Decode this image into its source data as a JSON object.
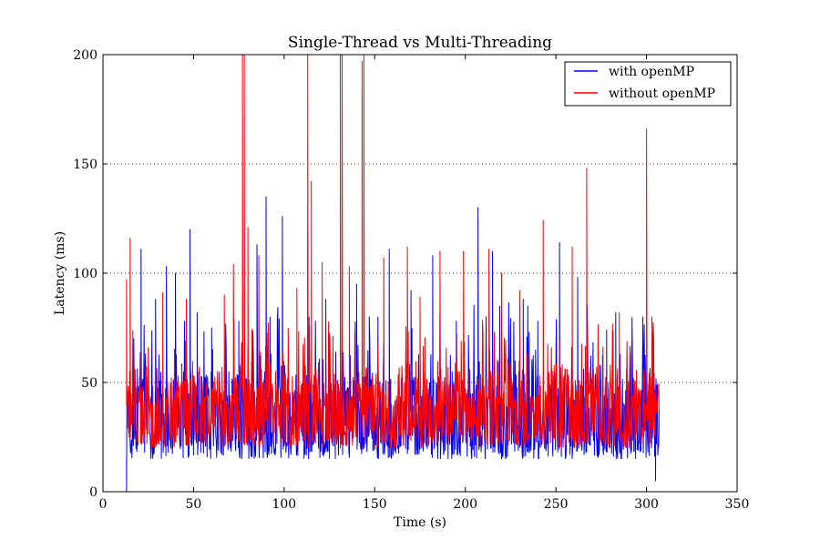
{
  "chart_data": {
    "type": "line",
    "title": "Single-Thread vs Multi-Threading",
    "xlabel": "Time (s)",
    "ylabel": "Latency (ms)",
    "xlim": [
      0,
      350
    ],
    "ylim": [
      0,
      200
    ],
    "xticks": [
      0,
      50,
      100,
      150,
      200,
      250,
      300,
      350
    ],
    "yticks": [
      0,
      50,
      100,
      150,
      200
    ],
    "grid": "y-dotted",
    "legend_position": "top-right",
    "series": [
      {
        "name": "with openMP",
        "color": "#0000ff",
        "x_range": [
          13,
          307
        ],
        "baseline": 35,
        "band": [
          15,
          70
        ],
        "spikes": [
          [
            13,
            0
          ],
          [
            17,
            70
          ],
          [
            21,
            111
          ],
          [
            29,
            88
          ],
          [
            35,
            103
          ],
          [
            40,
            100
          ],
          [
            48,
            120
          ],
          [
            52,
            82
          ],
          [
            60,
            75
          ],
          [
            75,
            78
          ],
          [
            85,
            113
          ],
          [
            90,
            135
          ],
          [
            99,
            126
          ],
          [
            113,
            118
          ],
          [
            123,
            88
          ],
          [
            131,
            76
          ],
          [
            140,
            95
          ],
          [
            147,
            80
          ],
          [
            158,
            111
          ],
          [
            170,
            92
          ],
          [
            182,
            108
          ],
          [
            195,
            78
          ],
          [
            207,
            130
          ],
          [
            215,
            110
          ],
          [
            220,
            85
          ],
          [
            232,
            88
          ],
          [
            240,
            78
          ],
          [
            252,
            114
          ],
          [
            262,
            98
          ],
          [
            278,
            74
          ],
          [
            283,
            82
          ],
          [
            298,
            80
          ],
          [
            303,
            70
          ],
          [
            305,
            5
          ]
        ]
      },
      {
        "name": "without openMP",
        "color": "#ff0000",
        "x_range": [
          13,
          307
        ],
        "baseline": 38,
        "band": [
          20,
          65
        ],
        "spikes": [
          [
            13,
            97
          ],
          [
            15,
            116
          ],
          [
            33,
            91
          ],
          [
            46,
            88
          ],
          [
            67,
            90
          ],
          [
            72,
            104
          ],
          [
            77,
            200
          ],
          [
            78,
            200
          ],
          [
            80,
            121
          ],
          [
            86,
            108
          ],
          [
            107,
            93
          ],
          [
            113,
            200
          ],
          [
            115,
            142
          ],
          [
            121,
            105
          ],
          [
            131,
            200
          ],
          [
            132,
            200
          ],
          [
            136,
            103
          ],
          [
            143,
            197
          ],
          [
            144,
            200
          ],
          [
            155,
            107
          ],
          [
            168,
            112
          ],
          [
            175,
            89
          ],
          [
            186,
            110
          ],
          [
            199,
            110
          ],
          [
            213,
            111
          ],
          [
            220,
            100
          ],
          [
            230,
            92
          ],
          [
            243,
            124
          ],
          [
            259,
            112
          ],
          [
            267,
            148
          ],
          [
            285,
            82
          ],
          [
            300,
            166
          ],
          [
            303,
            80
          ]
        ]
      }
    ]
  }
}
